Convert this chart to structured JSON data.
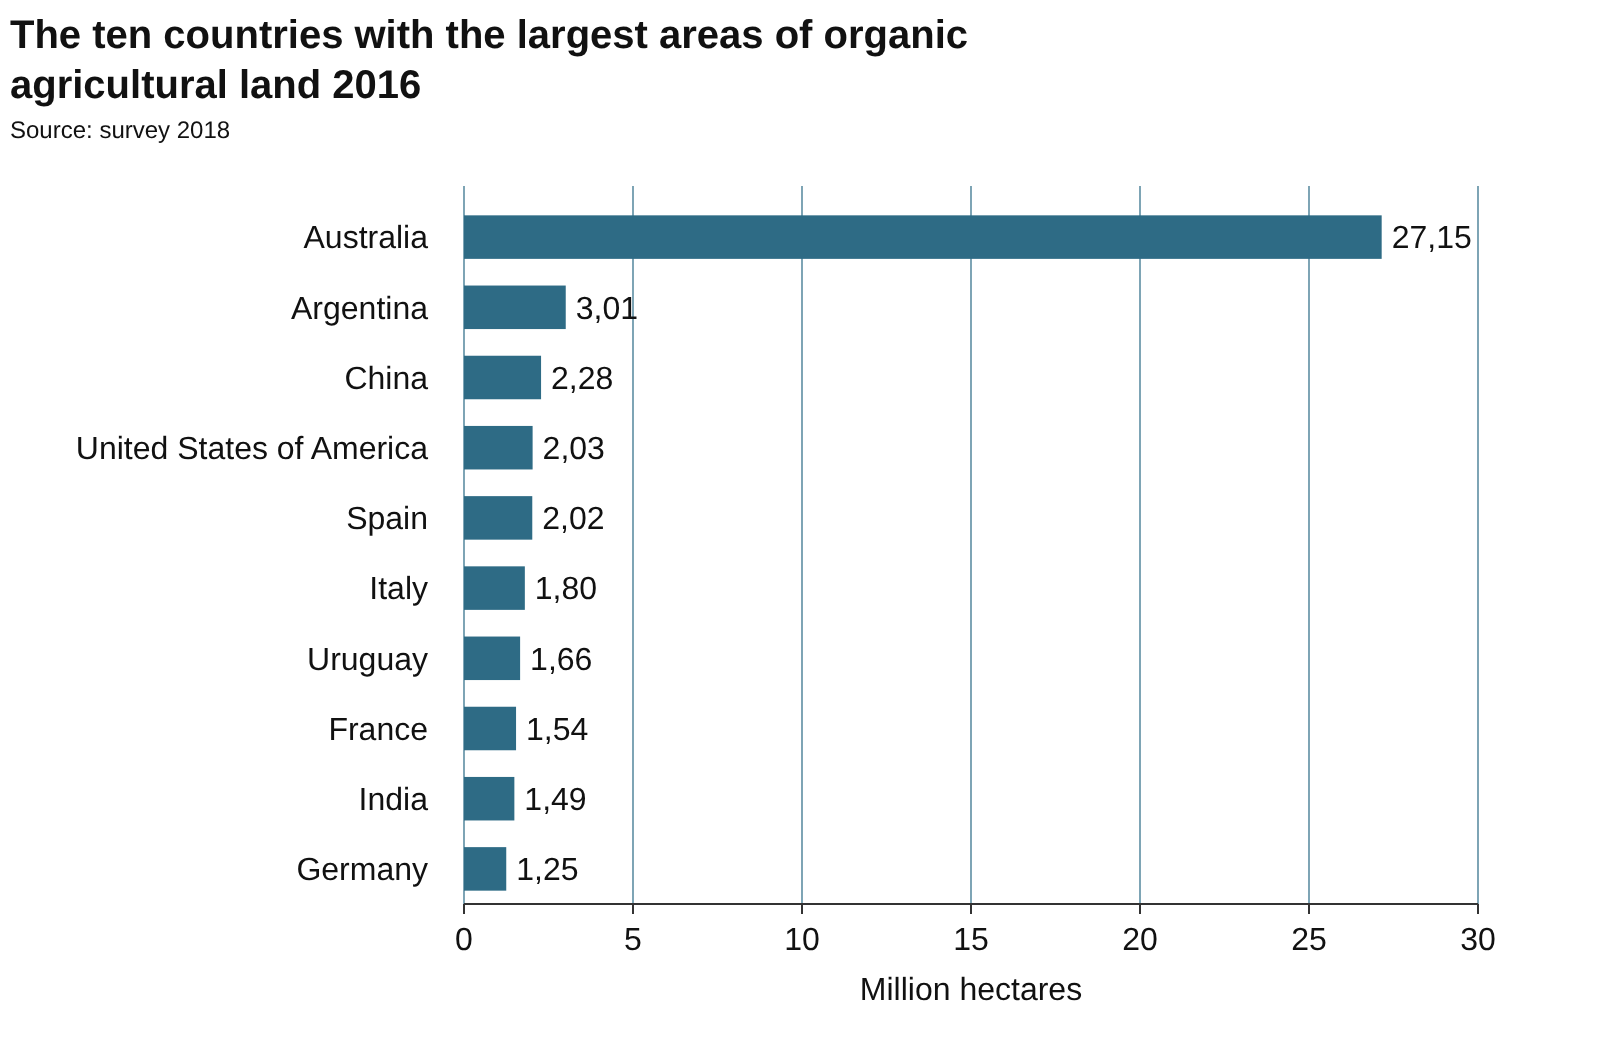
{
  "chart_data": {
    "type": "bar",
    "orientation": "horizontal",
    "title": "The ten countries with the largest areas of organic agricultural land 2016",
    "subtitle": "Source: survey 2018",
    "xlabel": "Million hectares",
    "categories": [
      "Australia",
      "Argentina",
      "China",
      "United States of America",
      "Spain",
      "Italy",
      "Uruguay",
      "France",
      "India",
      "Germany"
    ],
    "values": [
      27.15,
      3.01,
      2.28,
      2.03,
      2.02,
      1.8,
      1.66,
      1.54,
      1.49,
      1.25
    ],
    "value_labels": [
      "27,15",
      "3,01",
      "2,28",
      "2,03",
      "2,02",
      "1,80",
      "1,66",
      "1,54",
      "1,49",
      "1,25"
    ],
    "color": "#2e6b85",
    "xlim": [
      0,
      30
    ],
    "xticks": [
      0,
      5,
      10,
      15,
      20,
      25,
      30
    ],
    "grid": "x"
  }
}
